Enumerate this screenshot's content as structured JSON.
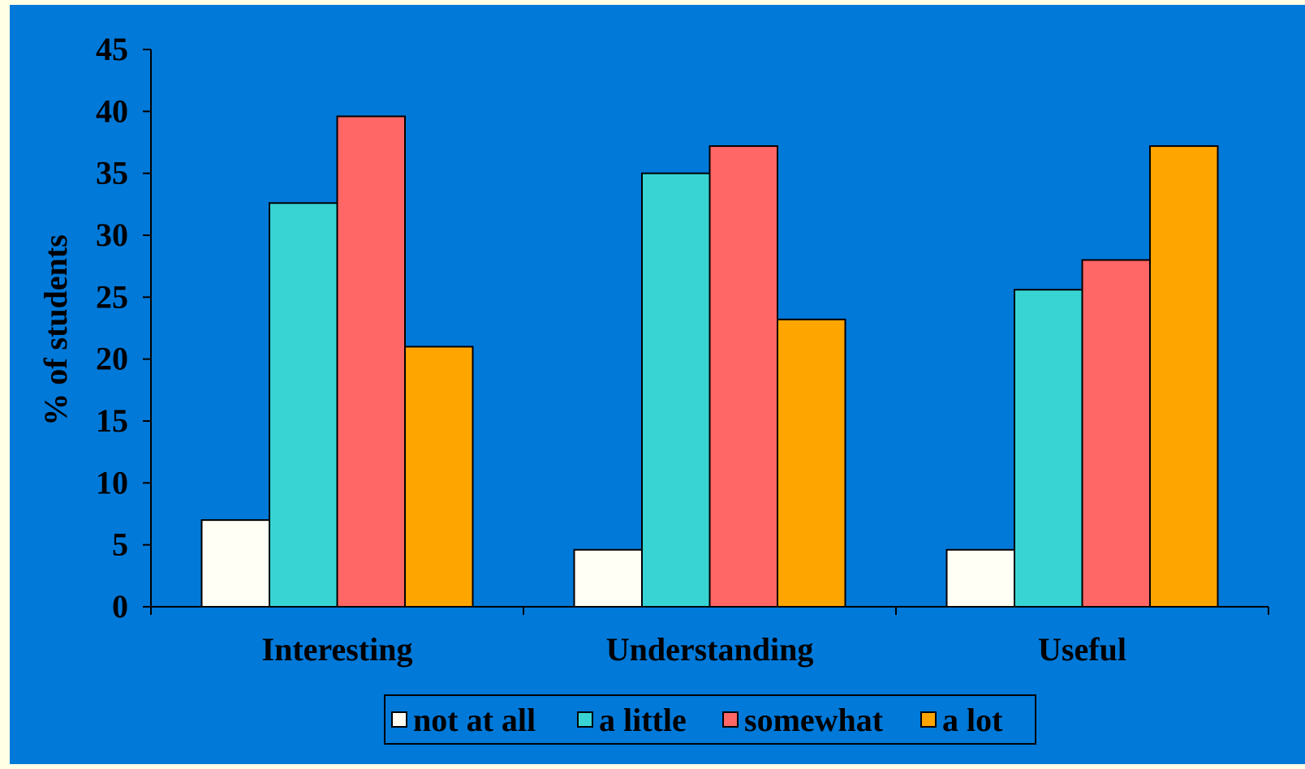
{
  "chart_data": {
    "type": "bar",
    "title": "",
    "xlabel": "",
    "ylabel": "% of students",
    "ylim": [
      0,
      45
    ],
    "yticks": [
      "0",
      "5",
      "10",
      "15",
      "20",
      "25",
      "30",
      "35",
      "40",
      "45"
    ],
    "categories": [
      "Interesting",
      "Understanding",
      "Useful"
    ],
    "series": [
      {
        "name": "not at all",
        "values": [
          7.0,
          4.6,
          4.6
        ],
        "color": "#fffff5"
      },
      {
        "name": "a little",
        "values": [
          32.6,
          35.0,
          25.6
        ],
        "color": "#38d4d4"
      },
      {
        "name": "somewhat",
        "values": [
          39.6,
          37.2,
          28.0
        ],
        "color": "#ff6666"
      },
      {
        "name": "a lot",
        "values": [
          21.0,
          23.2,
          37.2
        ],
        "color": "#ffa500"
      }
    ],
    "legend_position": "bottom-center",
    "grid": false,
    "background_color": "#0079d9"
  }
}
